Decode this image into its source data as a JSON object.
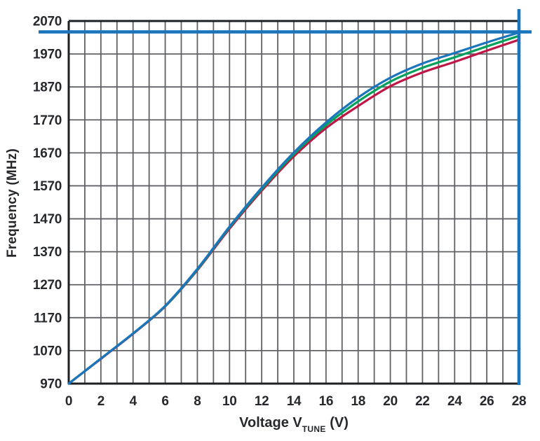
{
  "chart_data": {
    "type": "line",
    "title": "",
    "xlabel": "Voltage V_TUNE (V)",
    "xlabel_main": "Voltage V",
    "xlabel_sub": "TUNE",
    "xlabel_unit": " (V)",
    "ylabel": "Frequency (MHz)",
    "xlim": [
      0,
      28
    ],
    "ylim": [
      970,
      2070
    ],
    "x_ticks": [
      0,
      2,
      4,
      6,
      8,
      10,
      12,
      14,
      16,
      18,
      20,
      22,
      24,
      26,
      28
    ],
    "y_ticks": [
      970,
      1070,
      1170,
      1270,
      1370,
      1470,
      1570,
      1670,
      1770,
      1870,
      1970,
      2070
    ],
    "x_minor_grid_step": 1,
    "y_grid_step": 100,
    "grid": true,
    "legend_position": "none",
    "x": [
      0,
      2,
      4,
      6,
      8,
      10,
      12,
      14,
      16,
      18,
      20,
      22,
      24,
      26,
      28
    ],
    "series": [
      {
        "name": "red-curve",
        "color": "#bf1745",
        "values": [
          970,
          1045,
          1121,
          1204,
          1314,
          1440,
          1555,
          1659,
          1745,
          1812,
          1872,
          1914,
          1946,
          1980,
          2013
        ]
      },
      {
        "name": "green-curve",
        "color": "#00a15c",
        "values": [
          970,
          1046,
          1122,
          1205,
          1316,
          1444,
          1560,
          1666,
          1754,
          1826,
          1886,
          1928,
          1960,
          1993,
          2025
        ]
      },
      {
        "name": "blue-curve",
        "color": "#1b75bc",
        "values": [
          970,
          1046,
          1122,
          1206,
          1318,
          1446,
          1564,
          1671,
          1762,
          1838,
          1898,
          1941,
          1973,
          2005,
          2035
        ]
      }
    ],
    "reference_lines": {
      "horizontal_value_mhz": 2037,
      "vertical_value_v": 28,
      "color": "#1b75bc"
    }
  },
  "colors": {
    "background": "#ffffff",
    "grid": "#606266",
    "axis": "#1e1f21",
    "text": "#26282c",
    "reference": "#1b75bc"
  }
}
